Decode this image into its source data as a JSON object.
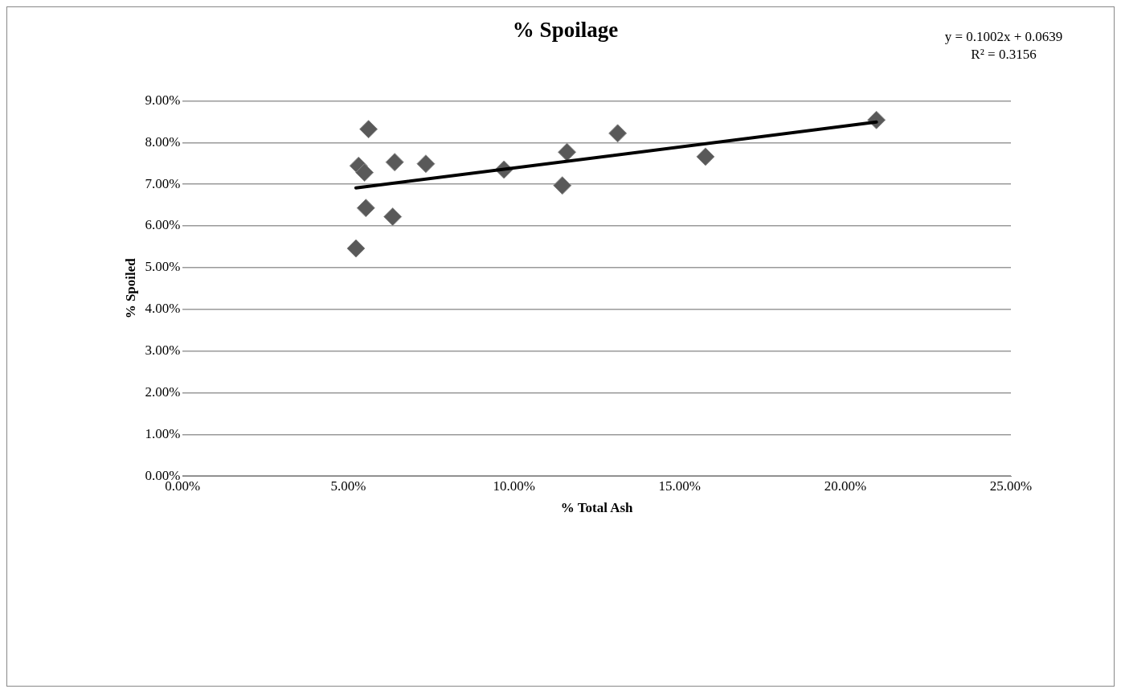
{
  "chart_data": {
    "type": "scatter",
    "title": "% Spoilage",
    "xlabel": "% Total Ash",
    "ylabel": "% Spoiled",
    "annotations": [
      "y = 0.1002x + 0.0639",
      "R² = 0.3156"
    ],
    "series": [
      {
        "type": "scatter",
        "color": "#595959",
        "marker": "diamond",
        "x": [
          5.61,
          5.31,
          5.49,
          6.4,
          7.34,
          5.53,
          6.34,
          5.23,
          9.7,
          11.6,
          11.46,
          13.13,
          15.78,
          20.94
        ],
        "values": [
          8.32,
          7.44,
          7.28,
          7.53,
          7.49,
          6.43,
          6.22,
          5.46,
          7.35,
          7.77,
          6.97,
          8.22,
          7.66,
          8.54
        ]
      },
      {
        "type": "line",
        "color": "#000000",
        "marker": "none",
        "x": [
          5.23,
          20.94
        ],
        "values": [
          6.91,
          8.49
        ]
      }
    ],
    "xlim": [
      0,
      25
    ],
    "xticks": [
      {
        "value": 0,
        "label": "0.00%"
      },
      {
        "value": 5,
        "label": "5.00%"
      },
      {
        "value": 10,
        "label": "10.00%"
      },
      {
        "value": 15,
        "label": "15.00%"
      },
      {
        "value": 20,
        "label": "20.00%"
      },
      {
        "value": 25,
        "label": "25.00%"
      }
    ],
    "ylim": [
      0,
      9
    ],
    "yticks": [
      {
        "value": 0,
        "label": "0.00%"
      },
      {
        "value": 1,
        "label": "1.00%"
      },
      {
        "value": 2,
        "label": "2.00%"
      },
      {
        "value": 3,
        "label": "3.00%"
      },
      {
        "value": 4,
        "label": "4.00%"
      },
      {
        "value": 5,
        "label": "5.00%"
      },
      {
        "value": 6,
        "label": "6.00%"
      },
      {
        "value": 7,
        "label": "7.00%"
      },
      {
        "value": 8,
        "label": "8.00%"
      },
      {
        "value": 9,
        "label": "9.00%"
      }
    ],
    "grid": "y",
    "legend": false
  }
}
